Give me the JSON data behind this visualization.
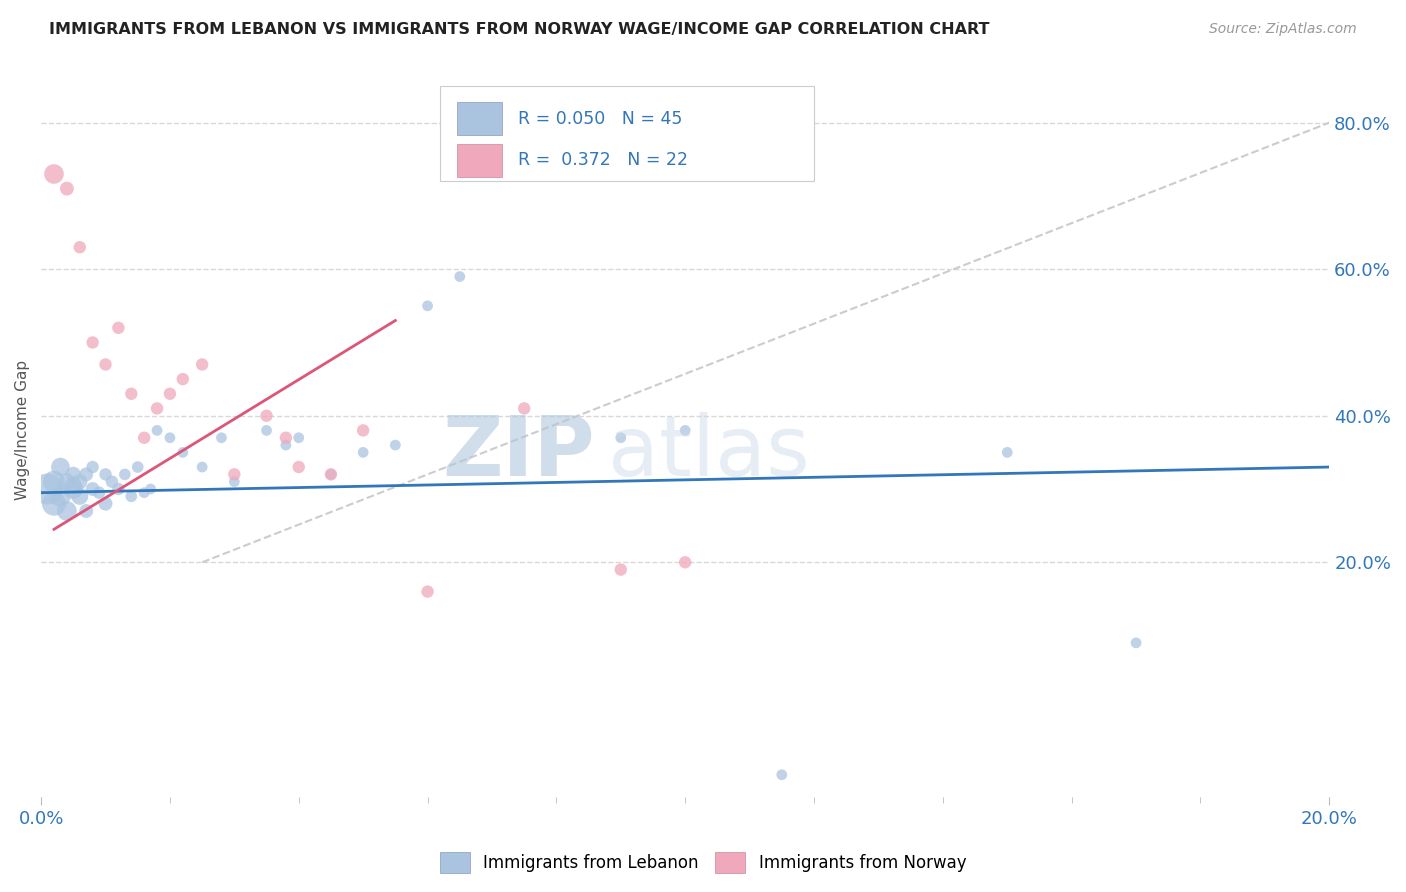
{
  "title": "IMMIGRANTS FROM LEBANON VS IMMIGRANTS FROM NORWAY WAGE/INCOME GAP CORRELATION CHART",
  "source": "Source: ZipAtlas.com",
  "ylabel": "Wage/Income Gap",
  "ylabel_right_labels": [
    "80.0%",
    "60.0%",
    "40.0%",
    "20.0%"
  ],
  "ylabel_right_positions": [
    0.8,
    0.6,
    0.4,
    0.2
  ],
  "legend_label_blue": "Immigrants from Lebanon",
  "legend_label_pink": "Immigrants from Norway",
  "R_blue": "0.050",
  "N_blue": "45",
  "R_pink": "0.372",
  "N_pink": "22",
  "blue_color": "#aac4e0",
  "pink_color": "#f0a8bc",
  "blue_line_color": "#3377bb",
  "pink_line_color": "#dd5577",
  "title_color": "#222222",
  "axis_label_color": "#3377bb",
  "watermark_zip": "ZIP",
  "watermark_atlas": "atlas",
  "xlim": [
    0.0,
    0.2
  ],
  "ylim": [
    -0.12,
    0.88
  ],
  "lebanon_x": [
    0.001,
    0.002,
    0.002,
    0.003,
    0.003,
    0.004,
    0.004,
    0.005,
    0.005,
    0.005,
    0.006,
    0.006,
    0.007,
    0.007,
    0.008,
    0.008,
    0.009,
    0.01,
    0.01,
    0.011,
    0.012,
    0.013,
    0.014,
    0.015,
    0.016,
    0.017,
    0.018,
    0.02,
    0.022,
    0.025,
    0.028,
    0.03,
    0.035,
    0.038,
    0.04,
    0.045,
    0.05,
    0.055,
    0.06,
    0.065,
    0.09,
    0.1,
    0.115,
    0.15,
    0.17
  ],
  "lebanon_y": [
    0.3,
    0.28,
    0.31,
    0.29,
    0.33,
    0.27,
    0.31,
    0.3,
    0.305,
    0.32,
    0.29,
    0.31,
    0.27,
    0.32,
    0.3,
    0.33,
    0.295,
    0.28,
    0.32,
    0.31,
    0.3,
    0.32,
    0.29,
    0.33,
    0.295,
    0.3,
    0.38,
    0.37,
    0.35,
    0.33,
    0.37,
    0.31,
    0.38,
    0.36,
    0.37,
    0.32,
    0.35,
    0.36,
    0.55,
    0.59,
    0.37,
    0.38,
    -0.09,
    0.35,
    0.09
  ],
  "lebanon_sizes": [
    500,
    300,
    250,
    220,
    180,
    200,
    150,
    200,
    150,
    120,
    150,
    120,
    100,
    100,
    100,
    80,
    80,
    100,
    80,
    80,
    80,
    70,
    70,
    70,
    60,
    60,
    60,
    60,
    60,
    60,
    60,
    60,
    60,
    60,
    60,
    60,
    60,
    60,
    60,
    60,
    60,
    60,
    60,
    60,
    60
  ],
  "norway_x": [
    0.002,
    0.004,
    0.006,
    0.008,
    0.01,
    0.012,
    0.014,
    0.016,
    0.018,
    0.02,
    0.022,
    0.025,
    0.03,
    0.035,
    0.038,
    0.04,
    0.045,
    0.05,
    0.06,
    0.075,
    0.09,
    0.1
  ],
  "norway_y": [
    0.73,
    0.71,
    0.63,
    0.5,
    0.47,
    0.52,
    0.43,
    0.37,
    0.41,
    0.43,
    0.45,
    0.47,
    0.32,
    0.4,
    0.37,
    0.33,
    0.32,
    0.38,
    0.16,
    0.41,
    0.19,
    0.2
  ],
  "norway_sizes": [
    200,
    100,
    80,
    80,
    80,
    80,
    80,
    80,
    80,
    80,
    80,
    80,
    80,
    80,
    80,
    80,
    80,
    80,
    80,
    80,
    80,
    80
  ],
  "blue_trendline_x": [
    0.0,
    0.2
  ],
  "blue_trendline_y": [
    0.295,
    0.33
  ],
  "pink_trendline_x": [
    0.002,
    0.055
  ],
  "pink_trendline_y": [
    0.245,
    0.53
  ],
  "diagonal_line_x": [
    0.025,
    0.2
  ],
  "diagonal_line_y": [
    0.2,
    0.8
  ],
  "background_color": "#ffffff",
  "grid_color": "#d8d8d8"
}
